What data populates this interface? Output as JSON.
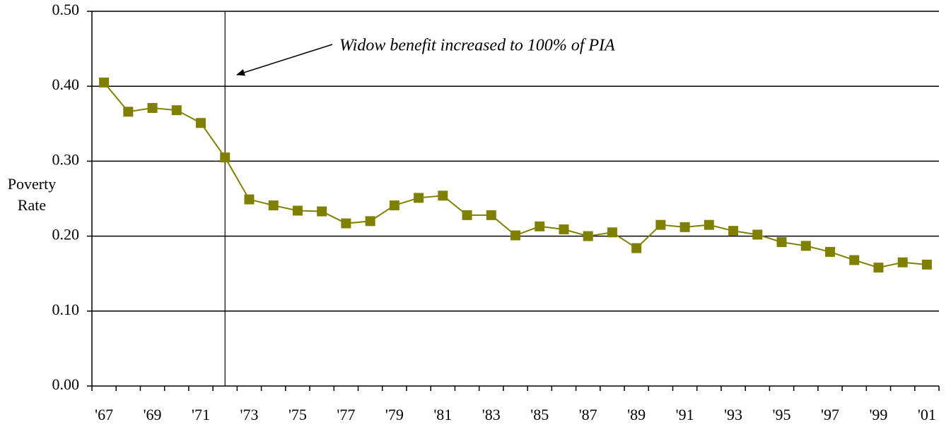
{
  "chart_data": {
    "type": "line",
    "y_label": "Poverty Rate",
    "annotation": "Widow benefit increased to 100% of PIA",
    "categories": [
      "'67",
      null,
      "'69",
      null,
      "'71",
      null,
      "'73",
      null,
      "'75",
      null,
      "'77",
      null,
      "'79",
      null,
      "'81",
      null,
      "'83",
      null,
      "'85",
      null,
      "'87",
      null,
      "'89",
      null,
      "'91",
      null,
      "'93",
      null,
      "'95",
      null,
      "'97",
      null,
      "'99",
      null,
      "'01"
    ],
    "series": [
      {
        "color": "#808000",
        "values": [
          0.405,
          0.366,
          0.371,
          0.368,
          0.351,
          0.305,
          0.249,
          0.241,
          0.234,
          0.233,
          0.217,
          0.22,
          0.241,
          0.251,
          0.254,
          0.228,
          0.228,
          0.201,
          0.213,
          0.209,
          0.2,
          0.205,
          0.184,
          0.215,
          0.212,
          0.215,
          0.207,
          0.202,
          0.192,
          0.187,
          0.179,
          0.168,
          0.158,
          0.165,
          0.162
        ]
      }
    ],
    "ylim": [
      0,
      0.5
    ],
    "yticks": [
      {
        "value": 0,
        "label": "0.00"
      },
      {
        "value": 0.1,
        "label": "0.10"
      },
      {
        "value": 0.2,
        "label": "0.20"
      },
      {
        "value": 0.3,
        "label": "0.30"
      },
      {
        "value": 0.4,
        "label": "0.40"
      },
      {
        "value": 0.5,
        "label": "0.50"
      }
    ],
    "grid": true
  }
}
